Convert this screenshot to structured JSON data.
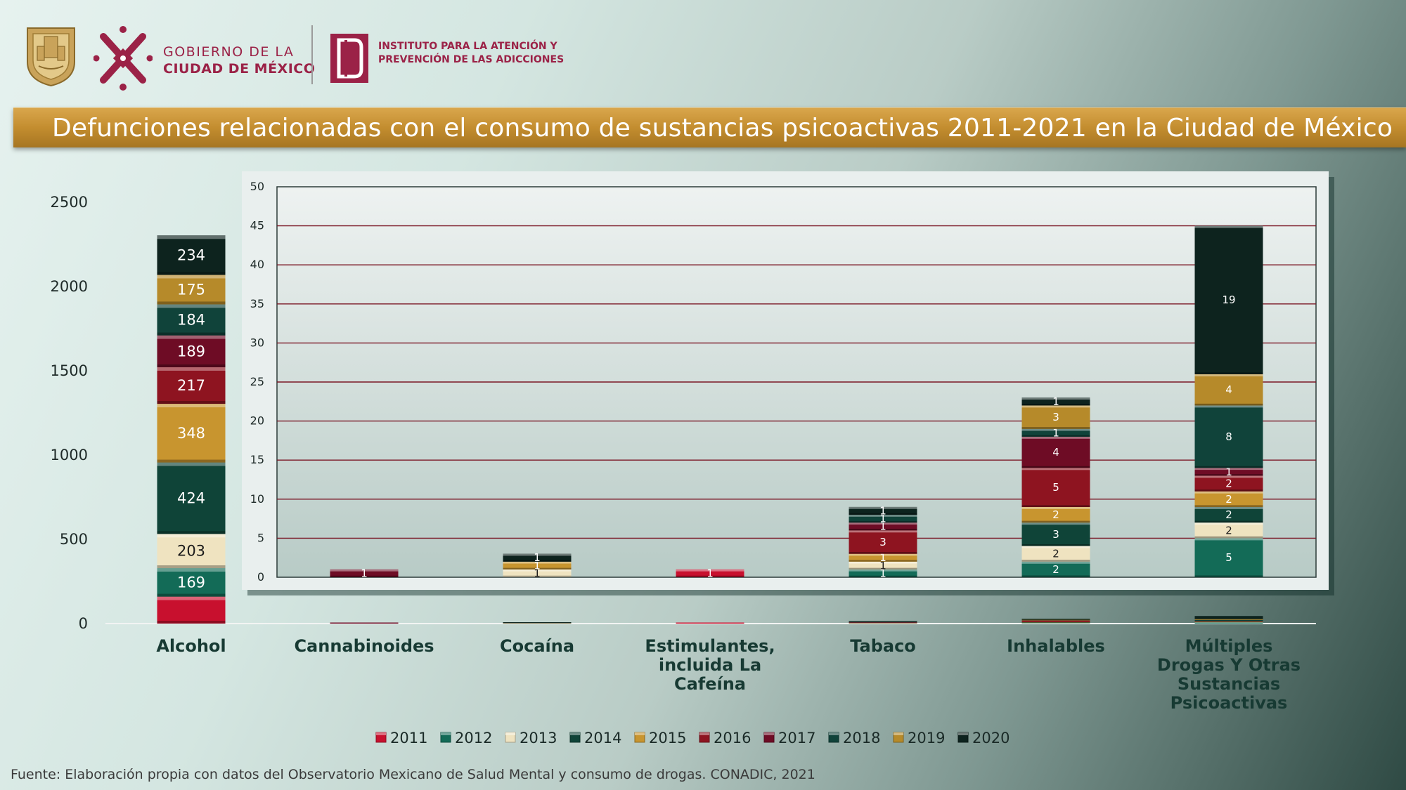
{
  "header": {
    "gov_line1": "GOBIERNO DE LA",
    "gov_line2": "CIUDAD DE MÉXICO",
    "inst_line1": "INSTITUTO PARA LA ATENCIÓN Y",
    "inst_line2": "PREVENCIÓN DE LAS ADICCIONES",
    "title": "Defunciones relacionadas con el consumo de sustancias psicoactivas 2011-2021 en la Ciudad de México"
  },
  "footer": "Fuente: Elaboración propia con datos del Observatorio Mexicano de Salud Mental y consumo de drogas. CONADIC, 2021",
  "colors": {
    "2011": "#c8102e",
    "2012": "#136b57",
    "2013": "#efe3c0",
    "2014": "#0f4438",
    "2015": "#c8952f",
    "2016": "#8e1420",
    "2017": "#6e0c25",
    "2018": "#10433a",
    "2019": "#b68a2a",
    "2020": "#0d231e"
  },
  "chart_data": [
    {
      "type": "bar",
      "stacked": true,
      "title": "",
      "xlabel": "",
      "ylabel": "",
      "ylim": [
        0,
        2500
      ],
      "yticks": [
        0,
        500,
        1000,
        1500,
        2000,
        2500
      ],
      "categories": [
        "Alcohol",
        "Cannabinoides",
        "Cocaína",
        "Estimulantes, incluida La Cafeína",
        "Tabaco",
        "Inhalables",
        "Múltiples Drogas Y Otras Sustancias Psicoactivas"
      ],
      "series": [
        {
          "name": "2011",
          "values": [
            160,
            0,
            0,
            1,
            0,
            0,
            0
          ]
        },
        {
          "name": "2012",
          "values": [
            169,
            0,
            0,
            0,
            1,
            2,
            5
          ]
        },
        {
          "name": "2013",
          "values": [
            203,
            0,
            1,
            0,
            1,
            2,
            2
          ]
        },
        {
          "name": "2014",
          "values": [
            424,
            0,
            0,
            0,
            0,
            3,
            2
          ]
        },
        {
          "name": "2015",
          "values": [
            348,
            0,
            1,
            0,
            1,
            2,
            2
          ]
        },
        {
          "name": "2016",
          "values": [
            217,
            0,
            0,
            0,
            3,
            5,
            2
          ]
        },
        {
          "name": "2017",
          "values": [
            189,
            1,
            0,
            0,
            1,
            4,
            1
          ]
        },
        {
          "name": "2018",
          "values": [
            184,
            0,
            0,
            0,
            1,
            1,
            8
          ]
        },
        {
          "name": "2019",
          "values": [
            175,
            0,
            0,
            0,
            0,
            3,
            4
          ]
        },
        {
          "name": "2020",
          "values": [
            234,
            0,
            1,
            0,
            1,
            1,
            19
          ]
        }
      ],
      "data_labels": {
        "Alcohol": [
          "",
          "169",
          "203",
          "424",
          "348",
          "217",
          "189",
          "184",
          "175",
          "234"
        ]
      },
      "legend": {
        "placement": "bottom",
        "entries": [
          "2011",
          "2012",
          "2013",
          "2014",
          "2015",
          "2016",
          "2017",
          "2018",
          "2019",
          "2020"
        ]
      }
    },
    {
      "type": "bar",
      "stacked": true,
      "title": "",
      "ylim": [
        0,
        50
      ],
      "yticks": [
        0,
        5,
        10,
        15,
        20,
        25,
        30,
        35,
        40,
        45,
        50
      ],
      "grid": true,
      "categories": [
        "Cannabinoides",
        "Cocaína",
        "Estimulantes, incluida La Cafeína",
        "Tabaco",
        "Inhalables",
        "Múltiples Drogas Y Otras Sustancias Psicoactivas"
      ],
      "series": [
        {
          "name": "2011",
          "values": [
            0,
            0,
            1,
            0,
            0,
            0
          ]
        },
        {
          "name": "2012",
          "values": [
            0,
            0,
            0,
            1,
            2,
            5
          ]
        },
        {
          "name": "2013",
          "values": [
            0,
            1,
            0,
            1,
            2,
            2
          ]
        },
        {
          "name": "2014",
          "values": [
            0,
            0,
            0,
            0,
            3,
            2
          ]
        },
        {
          "name": "2015",
          "values": [
            0,
            1,
            0,
            1,
            2,
            2
          ]
        },
        {
          "name": "2016",
          "values": [
            0,
            0,
            0,
            3,
            5,
            2
          ]
        },
        {
          "name": "2017",
          "values": [
            1,
            0,
            0,
            1,
            4,
            1
          ]
        },
        {
          "name": "2018",
          "values": [
            0,
            0,
            0,
            1,
            1,
            8
          ]
        },
        {
          "name": "2019",
          "values": [
            0,
            0,
            0,
            0,
            3,
            4
          ]
        },
        {
          "name": "2020",
          "values": [
            0,
            1,
            0,
            1,
            1,
            19
          ]
        }
      ]
    }
  ]
}
